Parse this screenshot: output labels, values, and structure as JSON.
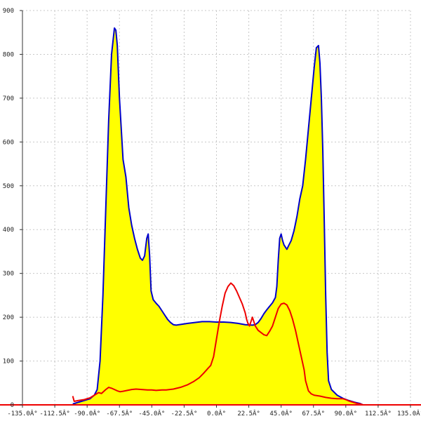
{
  "chart_data": {
    "type": "area",
    "title": "",
    "xlabel": "",
    "ylabel": "",
    "xlim": [
      -135,
      135
    ],
    "ylim": [
      0,
      900
    ],
    "grid": true,
    "x_ticks": [
      -135,
      -112.5,
      -90,
      -67.5,
      -45,
      -22.5,
      0,
      22.5,
      45,
      67.5,
      90,
      112.5,
      135
    ],
    "x_tick_labels": [
      "-135.0Â°",
      "-112.5Â°",
      "-90.0Â°",
      "-67.5Â°",
      "-45.0Â°",
      "-22.5Â°",
      "0.0Â°",
      "22.5Â°",
      "45.0Â°",
      "67.5Â°",
      "90.0Â°",
      "112.5Â°",
      "135.0Â°"
    ],
    "y_ticks": [
      0,
      100,
      200,
      300,
      400,
      500,
      600,
      700,
      800,
      900
    ],
    "y_tick_labels": [
      "0",
      "100",
      "200",
      "300",
      "400",
      "500",
      "600",
      "700",
      "800",
      "900"
    ],
    "series": [
      {
        "color": "#0000cc",
        "fill": "#ffff00",
        "points": [
          [
            -100,
            2
          ],
          [
            -96,
            6
          ],
          [
            -92,
            10
          ],
          [
            -88,
            14
          ],
          [
            -85,
            22
          ],
          [
            -83,
            35
          ],
          [
            -81,
            100
          ],
          [
            -79,
            250
          ],
          [
            -77,
            450
          ],
          [
            -75,
            650
          ],
          [
            -73,
            800
          ],
          [
            -71,
            860
          ],
          [
            -70,
            855
          ],
          [
            -69,
            820
          ],
          [
            -67.5,
            700
          ],
          [
            -65,
            560
          ],
          [
            -63,
            520
          ],
          [
            -61,
            450
          ],
          [
            -59,
            410
          ],
          [
            -57,
            380
          ],
          [
            -55,
            355
          ],
          [
            -53,
            335
          ],
          [
            -51.5,
            330
          ],
          [
            -50,
            340
          ],
          [
            -48.5,
            380
          ],
          [
            -47.5,
            390
          ],
          [
            -46.5,
            340
          ],
          [
            -45.5,
            260
          ],
          [
            -44,
            240
          ],
          [
            -42,
            232
          ],
          [
            -40,
            225
          ],
          [
            -38,
            215
          ],
          [
            -36,
            205
          ],
          [
            -34,
            195
          ],
          [
            -32,
            188
          ],
          [
            -30,
            183
          ],
          [
            -28,
            182
          ],
          [
            -26,
            183
          ],
          [
            -24,
            184
          ],
          [
            -22,
            185
          ],
          [
            -20,
            186
          ],
          [
            -15,
            188
          ],
          [
            -10,
            190
          ],
          [
            -5,
            190
          ],
          [
            0,
            189
          ],
          [
            5,
            189
          ],
          [
            10,
            188
          ],
          [
            15,
            186
          ],
          [
            20,
            183
          ],
          [
            25,
            182
          ],
          [
            27,
            183
          ],
          [
            29,
            188
          ],
          [
            31,
            197
          ],
          [
            33,
            208
          ],
          [
            35,
            217
          ],
          [
            37,
            225
          ],
          [
            39,
            233
          ],
          [
            41,
            245
          ],
          [
            42,
            270
          ],
          [
            43,
            330
          ],
          [
            44,
            380
          ],
          [
            45,
            390
          ],
          [
            46,
            375
          ],
          [
            47,
            365
          ],
          [
            48,
            360
          ],
          [
            49,
            355
          ],
          [
            50,
            362
          ],
          [
            52,
            375
          ],
          [
            54,
            398
          ],
          [
            56,
            430
          ],
          [
            58,
            470
          ],
          [
            60,
            500
          ],
          [
            62,
            560
          ],
          [
            64,
            630
          ],
          [
            66,
            700
          ],
          [
            68,
            770
          ],
          [
            69.5,
            815
          ],
          [
            71,
            820
          ],
          [
            72,
            780
          ],
          [
            73,
            700
          ],
          [
            74,
            580
          ],
          [
            75,
            420
          ],
          [
            76,
            250
          ],
          [
            77,
            120
          ],
          [
            78,
            55
          ],
          [
            80,
            35
          ],
          [
            84,
            22
          ],
          [
            88,
            15
          ],
          [
            92,
            10
          ],
          [
            96,
            6
          ],
          [
            100,
            3
          ],
          [
            102,
            0
          ]
        ]
      },
      {
        "color": "#ee0000",
        "fill": "none",
        "points": [
          [
            -100,
            20
          ],
          [
            -99,
            8
          ],
          [
            -96,
            10
          ],
          [
            -92,
            12
          ],
          [
            -88,
            16
          ],
          [
            -85,
            22
          ],
          [
            -82,
            28
          ],
          [
            -80,
            26
          ],
          [
            -77,
            35
          ],
          [
            -75,
            40
          ],
          [
            -73,
            38
          ],
          [
            -71,
            35
          ],
          [
            -69,
            32
          ],
          [
            -67,
            30
          ],
          [
            -65,
            31
          ],
          [
            -62,
            33
          ],
          [
            -59,
            35
          ],
          [
            -56,
            36
          ],
          [
            -52,
            35
          ],
          [
            -48,
            34
          ],
          [
            -45,
            34
          ],
          [
            -42,
            33
          ],
          [
            -38,
            34
          ],
          [
            -35,
            34
          ],
          [
            -30,
            36
          ],
          [
            -25,
            40
          ],
          [
            -20,
            46
          ],
          [
            -16,
            53
          ],
          [
            -12,
            62
          ],
          [
            -9,
            72
          ],
          [
            -6,
            83
          ],
          [
            -4,
            90
          ],
          [
            -2,
            110
          ],
          [
            0,
            150
          ],
          [
            2,
            190
          ],
          [
            4,
            225
          ],
          [
            6,
            255
          ],
          [
            8,
            270
          ],
          [
            10,
            278
          ],
          [
            12,
            272
          ],
          [
            14,
            260
          ],
          [
            16,
            245
          ],
          [
            18,
            230
          ],
          [
            20,
            210
          ],
          [
            21,
            195
          ],
          [
            22,
            185
          ],
          [
            23,
            180
          ],
          [
            24,
            190
          ],
          [
            25,
            200
          ],
          [
            26,
            190
          ],
          [
            27,
            180
          ],
          [
            29,
            170
          ],
          [
            31,
            165
          ],
          [
            33,
            160
          ],
          [
            35,
            158
          ],
          [
            37,
            168
          ],
          [
            39,
            180
          ],
          [
            41,
            200
          ],
          [
            43,
            220
          ],
          [
            45,
            230
          ],
          [
            47,
            232
          ],
          [
            49,
            228
          ],
          [
            51,
            215
          ],
          [
            53,
            195
          ],
          [
            55,
            170
          ],
          [
            57,
            140
          ],
          [
            59,
            110
          ],
          [
            61,
            80
          ],
          [
            62,
            55
          ],
          [
            64,
            32
          ],
          [
            66,
            25
          ],
          [
            68,
            22
          ],
          [
            72,
            20
          ],
          [
            76,
            17
          ],
          [
            80,
            15
          ],
          [
            84,
            14
          ],
          [
            88,
            14
          ],
          [
            90,
            12
          ],
          [
            92,
            9
          ],
          [
            95,
            6
          ],
          [
            98,
            3
          ],
          [
            100,
            2
          ],
          [
            102,
            0
          ]
        ]
      }
    ]
  }
}
